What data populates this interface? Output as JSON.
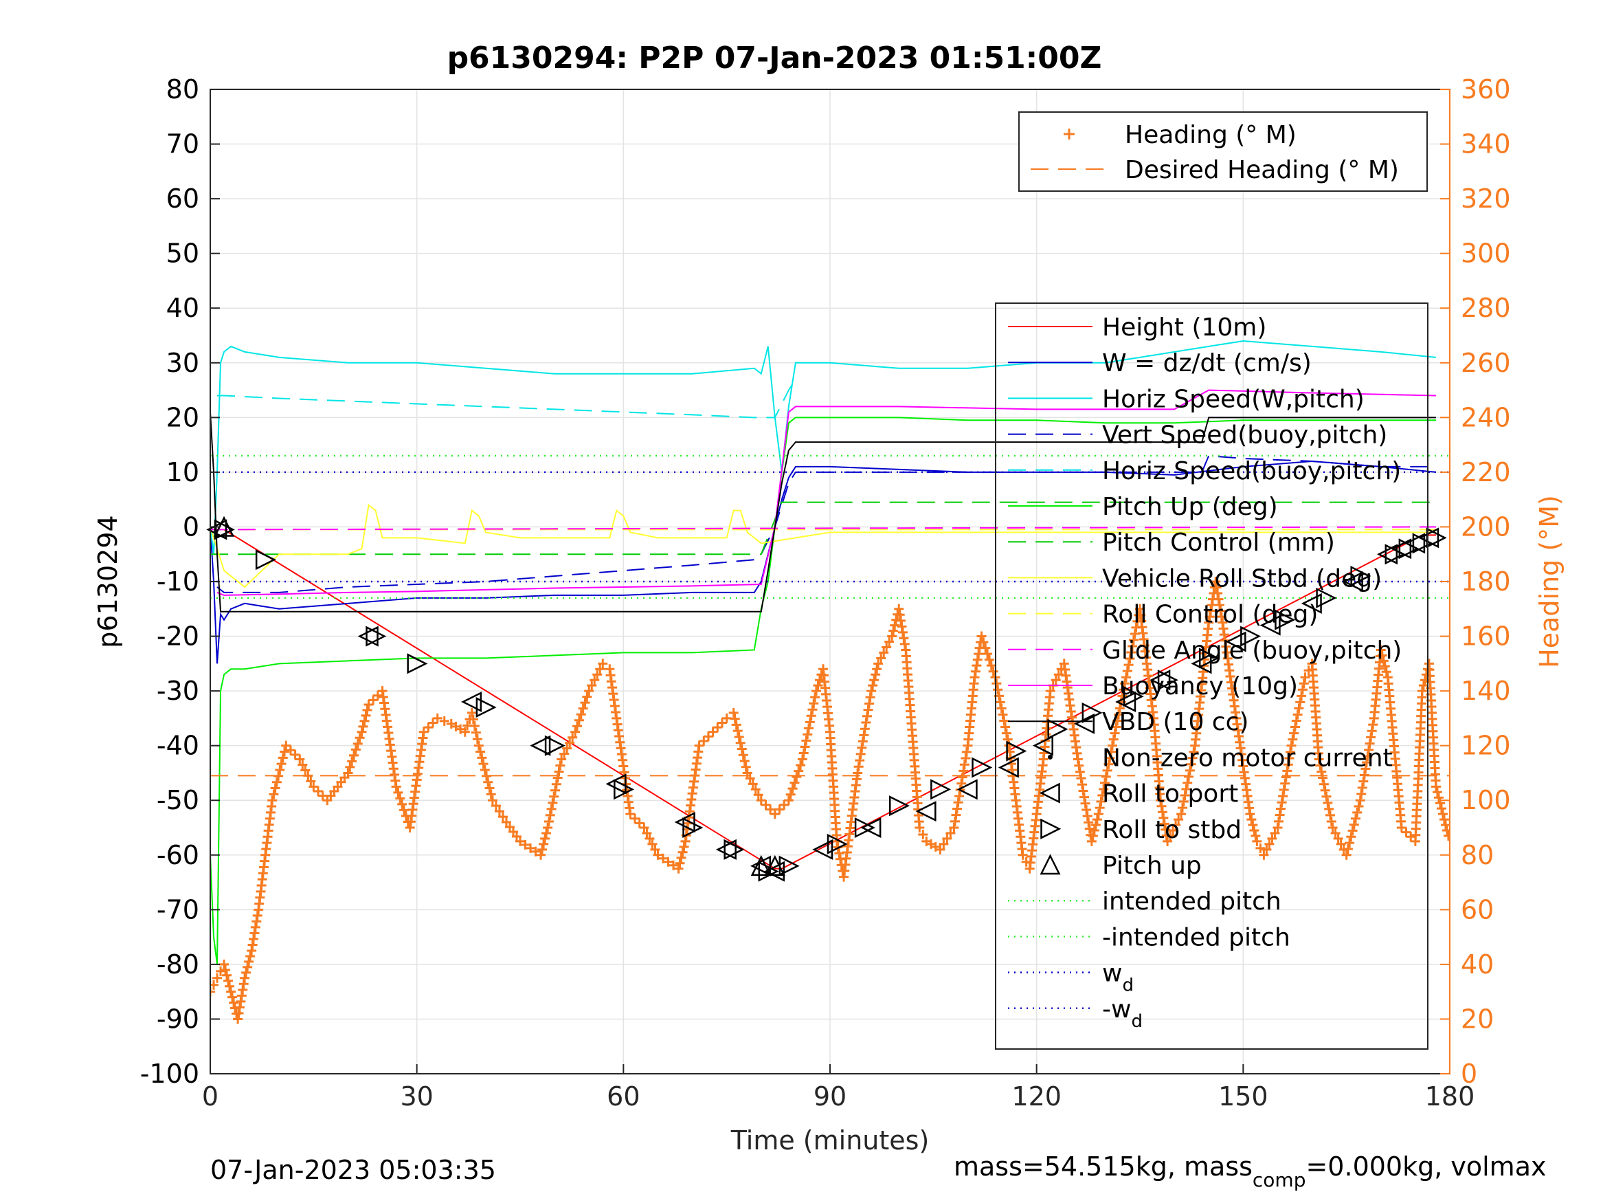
{
  "chart_data": {
    "type": "line",
    "title": "p6130294: P2P 07-Jan-2023 01:51:00Z",
    "xlabel": "Time (minutes)",
    "ylabel": "p6130294",
    "y2label": "Heading (°M)",
    "xlim": [
      0,
      180
    ],
    "ylim": [
      -100,
      80
    ],
    "y2lim": [
      0,
      360
    ],
    "xticks": [
      0,
      30,
      60,
      90,
      120,
      150,
      180
    ],
    "yticks": [
      -100,
      -90,
      -80,
      -70,
      -60,
      -50,
      -40,
      -30,
      -20,
      -10,
      0,
      10,
      20,
      30,
      40,
      50,
      60,
      70,
      80
    ],
    "y2ticks": [
      0,
      20,
      40,
      60,
      80,
      100,
      120,
      140,
      160,
      180,
      200,
      220,
      240,
      260,
      280,
      300,
      320,
      340,
      360
    ],
    "grid": true,
    "footer_left": "07-Jan-2023 05:03:35",
    "footer_right": {
      "prefix": "mass=54.515kg, mass",
      "sub": "comp",
      "suffix": "=0.000kg, volmax"
    },
    "legend_top": [
      {
        "label": "Heading (° M)",
        "color": "#f77b20",
        "style": "plus"
      },
      {
        "label": "Desired Heading (° M)",
        "color": "#f77b20",
        "style": "dash"
      }
    ],
    "legend_main": [
      {
        "label": "Height (10m)",
        "color": "#ff0000",
        "style": "solid"
      },
      {
        "label": "W = dz/dt (cm/s)",
        "color": "#0000cc",
        "style": "solid"
      },
      {
        "label": "Horiz Speed(W,pitch)",
        "color": "#00e5e5",
        "style": "solid"
      },
      {
        "label": "Vert Speed(buoy,pitch)",
        "color": "#0000cc",
        "style": "dash"
      },
      {
        "label": "Horiz Speed(buoy,pitch)",
        "color": "#00e5e5",
        "style": "dash"
      },
      {
        "label": "Pitch Up (deg)",
        "color": "#00ee00",
        "style": "solid"
      },
      {
        "label": "Pitch Control (mm)",
        "color": "#00cc00",
        "style": "dash"
      },
      {
        "label": "Vehicle Roll Stbd (deg)",
        "color": "#ffff33",
        "style": "solid"
      },
      {
        "label": "Roll Control (deg)",
        "color": "#ffff33",
        "style": "dash"
      },
      {
        "label": "Glide Angle (buoy,pitch)",
        "color": "#ff00ff",
        "style": "dash"
      },
      {
        "label": "Buoyancy (10g)",
        "color": "#ff00ff",
        "style": "solid"
      },
      {
        "label": "VBD (10 cc)",
        "color": "#000000",
        "style": "solid"
      },
      {
        "label": "Non-zero motor current",
        "color": "#000000",
        "style": "dot"
      },
      {
        "label": "Roll to port",
        "color": "#000000",
        "style": "tri-left"
      },
      {
        "label": "Roll to stbd",
        "color": "#000000",
        "style": "tri-right"
      },
      {
        "label": "Pitch up",
        "color": "#000000",
        "style": "tri-up"
      },
      {
        "label": "intended pitch",
        "color": "#33ee33",
        "style": "dotted"
      },
      {
        "label": "-intended pitch",
        "color": "#33ee33",
        "style": "dotted"
      },
      {
        "label": "w",
        "sub": "d",
        "color": "#0000cc",
        "style": "dotted"
      },
      {
        "label": "-w",
        "sub": "d",
        "color": "#0000cc",
        "style": "dotted"
      }
    ],
    "series": [
      {
        "name": "Height (10m)",
        "axis": "left",
        "color": "#ff0000",
        "style": "solid",
        "x": [
          0,
          1,
          2,
          82,
          83,
          176,
          178
        ],
        "y": [
          -0.5,
          -0.5,
          -0.5,
          -62.5,
          -62.5,
          -1.5,
          -1.5
        ]
      },
      {
        "name": "W = dz/dt (cm/s)",
        "axis": "left",
        "color": "#0000cc",
        "style": "solid",
        "x": [
          0,
          0.5,
          1,
          1.5,
          2,
          3,
          5,
          10,
          20,
          30,
          40,
          50,
          60,
          70,
          79,
          80,
          81,
          82,
          83,
          84,
          85,
          90,
          100,
          110,
          120,
          130,
          140,
          150,
          160,
          170,
          178
        ],
        "y": [
          0,
          -10,
          -25,
          -16,
          -17,
          -15,
          -14,
          -15,
          -14,
          -13,
          -13,
          -12.5,
          -12.5,
          -12,
          -12,
          -10,
          -5,
          0,
          5,
          9,
          11,
          11,
          10.5,
          10,
          10,
          10,
          9.5,
          11,
          12,
          11,
          10
        ]
      },
      {
        "name": "Horiz Speed(W,pitch)",
        "axis": "left",
        "color": "#00e5e5",
        "style": "solid",
        "x": [
          0,
          0.5,
          1,
          1.5,
          2,
          3,
          5,
          10,
          20,
          30,
          40,
          50,
          60,
          70,
          79,
          80,
          81,
          82,
          83,
          84,
          85,
          90,
          100,
          110,
          120,
          130,
          140,
          150,
          160,
          170,
          178
        ],
        "y": [
          0,
          -5,
          10,
          30,
          32,
          33,
          32,
          31,
          30,
          30,
          29,
          28,
          28,
          28,
          29,
          28,
          33,
          20,
          10,
          22,
          30,
          30,
          29,
          29,
          30,
          30,
          32,
          34,
          33,
          32,
          31
        ]
      },
      {
        "name": "Vert Speed(buoy,pitch)",
        "axis": "left",
        "color": "#0000cc",
        "style": "dash",
        "x": [
          1,
          2,
          10,
          20,
          30,
          40,
          50,
          60,
          70,
          79,
          80,
          82,
          84,
          85,
          90,
          100,
          110,
          120,
          130,
          140,
          144,
          145,
          150,
          160,
          170,
          178
        ],
        "y": [
          -11,
          -12,
          -12,
          -11,
          -10.5,
          -10,
          -9,
          -8,
          -7,
          -6,
          -5,
          0,
          8,
          10,
          10,
          10,
          10,
          10,
          10,
          10,
          10,
          13,
          12.5,
          12,
          11,
          11
        ]
      },
      {
        "name": "Horiz Speed(buoy,pitch)",
        "axis": "left",
        "color": "#00e5e5",
        "style": "dash",
        "x": [
          1,
          2,
          10,
          20,
          30,
          40,
          50,
          60,
          70,
          79,
          80,
          82,
          84,
          85
        ],
        "y": [
          24,
          24,
          23.5,
          23,
          22.5,
          22,
          21.5,
          21,
          20.5,
          20,
          20,
          20,
          25,
          27
        ]
      },
      {
        "name": "Pitch Up (deg)",
        "axis": "left",
        "color": "#00ee00",
        "style": "solid",
        "x": [
          0,
          0.5,
          1,
          1.5,
          2,
          3,
          5,
          10,
          20,
          30,
          40,
          50,
          60,
          70,
          79,
          80,
          81,
          82,
          83,
          84,
          85,
          90,
          100,
          110,
          120,
          130,
          140,
          150,
          160,
          170,
          178
        ],
        "y": [
          -60,
          -75,
          -80,
          -30,
          -27,
          -26,
          -26,
          -25,
          -24.5,
          -24,
          -24,
          -23.5,
          -23,
          -23,
          -22.5,
          -15,
          -10,
          0,
          10,
          19,
          20,
          20,
          20,
          19.5,
          19.5,
          19,
          19,
          19.5,
          19.5,
          19.5,
          19.5
        ]
      },
      {
        "name": "Pitch Control (mm)",
        "axis": "left",
        "color": "#00cc00",
        "style": "dash",
        "x": [
          0,
          80,
          83,
          178
        ],
        "y": [
          -5,
          -5,
          4.5,
          4.5
        ]
      },
      {
        "name": "Vehicle Roll Stbd (deg)",
        "axis": "left",
        "color": "#ffff33",
        "style": "solid",
        "x": [
          0,
          2,
          5,
          10,
          20,
          22,
          23,
          24,
          25,
          30,
          37,
          38,
          39,
          40,
          45,
          50,
          58,
          59,
          60,
          61,
          65,
          70,
          75,
          76,
          77,
          78,
          80,
          85,
          90,
          95,
          100,
          110,
          120,
          130,
          140,
          150,
          160,
          170,
          178
        ],
        "y": [
          0,
          -8,
          -11,
          -5,
          -5,
          -4,
          4,
          3,
          -2,
          -2,
          -3,
          3,
          2,
          -1,
          -2,
          -2,
          -2,
          3,
          2,
          -1,
          -2,
          -2,
          -2,
          3,
          3,
          -1,
          -3,
          -2,
          -1,
          -1,
          -1,
          -1,
          -1,
          -1,
          -1,
          -1,
          -1,
          -1,
          -1
        ]
      },
      {
        "name": "Roll Control (deg)",
        "axis": "left",
        "color": "#ffff33",
        "style": "dash",
        "x": [
          0,
          178
        ],
        "y": [
          -0.5,
          -0.5
        ]
      },
      {
        "name": "Glide Angle (buoy,pitch)",
        "axis": "left",
        "color": "#ff00ff",
        "style": "dash",
        "x": [
          0,
          178
        ],
        "y": [
          -0.5,
          0
        ]
      },
      {
        "name": "Buoyancy (10g)",
        "axis": "left",
        "color": "#ff00ff",
        "style": "solid",
        "x": [
          1,
          2,
          10,
          20,
          30,
          40,
          50,
          60,
          70,
          80,
          82,
          84,
          85,
          100,
          120,
          140,
          145,
          160,
          178
        ],
        "y": [
          -12,
          -12.5,
          -12.3,
          -12,
          -11.8,
          -11.5,
          -11.2,
          -11,
          -10.8,
          -10.5,
          0,
          21,
          22,
          22,
          21.5,
          21.5,
          25,
          24.5,
          24
        ]
      },
      {
        "name": "VBD (10 cc)",
        "axis": "left",
        "color": "#000000",
        "style": "solid",
        "x": [
          0,
          0.5,
          1,
          1.5,
          2,
          80,
          81,
          82,
          83,
          84,
          85,
          144,
          145,
          178
        ],
        "y": [
          21,
          10,
          -5,
          -15.5,
          -15.5,
          -15.5,
          -8,
          0,
          8,
          14,
          15.5,
          15.5,
          20,
          20
        ]
      },
      {
        "name": "intended pitch",
        "axis": "left",
        "color": "#33ee33",
        "style": "dotted",
        "x": [
          0,
          180
        ],
        "y": [
          13,
          13
        ]
      },
      {
        "name": "-intended pitch",
        "axis": "left",
        "color": "#33ee33",
        "style": "dotted",
        "x": [
          0,
          180
        ],
        "y": [
          -13,
          -13
        ]
      },
      {
        "name": "w_d",
        "axis": "left",
        "color": "#0000cc",
        "style": "dotted",
        "x": [
          0,
          180
        ],
        "y": [
          10,
          10
        ]
      },
      {
        "name": "-w_d",
        "axis": "left",
        "color": "#0000cc",
        "style": "dotted",
        "x": [
          0,
          180
        ],
        "y": [
          -10,
          -10
        ]
      },
      {
        "name": "Desired Heading (° M)",
        "axis": "right",
        "color": "#f77b20",
        "style": "dash",
        "x": [
          0,
          180
        ],
        "y": [
          109,
          109
        ]
      },
      {
        "name": "Heading (° M)",
        "axis": "right",
        "color": "#f77b20",
        "style": "plus",
        "x": [
          0,
          1,
          2,
          3,
          4,
          5,
          6,
          7,
          8,
          9,
          11,
          13,
          15,
          17,
          20,
          22,
          23,
          25,
          27,
          29,
          31,
          33,
          35,
          37,
          38,
          39,
          41,
          43,
          45,
          48,
          49,
          51,
          53,
          55,
          57,
          58,
          59,
          61,
          63,
          65,
          68,
          69,
          71,
          73,
          75,
          76,
          78,
          80,
          82,
          84,
          86,
          88,
          89,
          90,
          91,
          92,
          94,
          96,
          97,
          99,
          100,
          101,
          103,
          104,
          106,
          108,
          110,
          111,
          112,
          114,
          116,
          118,
          119,
          120,
          121,
          122,
          124,
          126,
          128,
          129,
          131,
          133,
          135,
          137,
          138,
          139,
          141,
          143,
          145,
          146,
          147,
          149,
          151,
          152,
          153,
          155,
          157,
          159,
          160,
          161,
          163,
          165,
          167,
          169,
          170,
          171,
          173,
          175,
          176,
          177,
          178,
          179,
          180
        ],
        "y": [
          30,
          35,
          40,
          30,
          20,
          35,
          45,
          60,
          80,
          100,
          120,
          115,
          105,
          100,
          110,
          125,
          135,
          140,
          105,
          90,
          125,
          130,
          128,
          125,
          132,
          120,
          100,
          92,
          85,
          80,
          90,
          115,
          125,
          140,
          150,
          148,
          130,
          95,
          90,
          80,
          75,
          85,
          120,
          125,
          130,
          132,
          110,
          100,
          95,
          100,
          115,
          140,
          148,
          125,
          85,
          72,
          110,
          140,
          150,
          160,
          170,
          155,
          90,
          85,
          82,
          90,
          120,
          145,
          160,
          145,
          120,
          80,
          75,
          95,
          115,
          140,
          150,
          115,
          85,
          95,
          120,
          145,
          170,
          130,
          100,
          85,
          95,
          120,
          165,
          180,
          165,
          130,
          95,
          85,
          80,
          90,
          120,
          145,
          150,
          115,
          90,
          80,
          100,
          130,
          155,
          145,
          90,
          85,
          140,
          150,
          105,
          95,
          85
        ]
      },
      {
        "name": "Roll to port",
        "axis": "left",
        "color": "#000000",
        "style": "marker-tri-left",
        "x": [
          1,
          23,
          38,
          48,
          59,
          69,
          75,
          80,
          82,
          89,
          96,
          104,
          110,
          116,
          121,
          127,
          133,
          138,
          144,
          149,
          154,
          160,
          166,
          171,
          173,
          175,
          177
        ],
        "y": [
          -0.5,
          -20,
          -32,
          -40,
          -47,
          -54,
          -59,
          -62,
          -63,
          -59,
          -55,
          -52,
          -48,
          -44,
          -40,
          -36,
          -32,
          -28,
          -25,
          -21,
          -18,
          -14,
          -10,
          -5,
          -4,
          -3,
          -2
        ]
      },
      {
        "name": "Roll to stbd",
        "axis": "left",
        "color": "#000000",
        "style": "marker-tri-right",
        "x": [
          2,
          8,
          24,
          30,
          40,
          50,
          60,
          70,
          76,
          81,
          84,
          91,
          95,
          100,
          106,
          112,
          117,
          123,
          128,
          134,
          139,
          145,
          151,
          156,
          162,
          167,
          172,
          174,
          176,
          178
        ],
        "y": [
          -0.5,
          -6,
          -20,
          -25,
          -33,
          -40,
          -48,
          -55,
          -59,
          -63,
          -62,
          -58,
          -55,
          -51,
          -48,
          -44,
          -41,
          -37,
          -34,
          -31,
          -28,
          -24,
          -20,
          -17,
          -13,
          -9,
          -5,
          -4,
          -3,
          -2
        ]
      },
      {
        "name": "Pitch up",
        "axis": "left",
        "color": "#000000",
        "style": "marker-tri-up",
        "x": [
          2,
          80,
          82
        ],
        "y": [
          0,
          -62,
          -62
        ]
      }
    ]
  }
}
